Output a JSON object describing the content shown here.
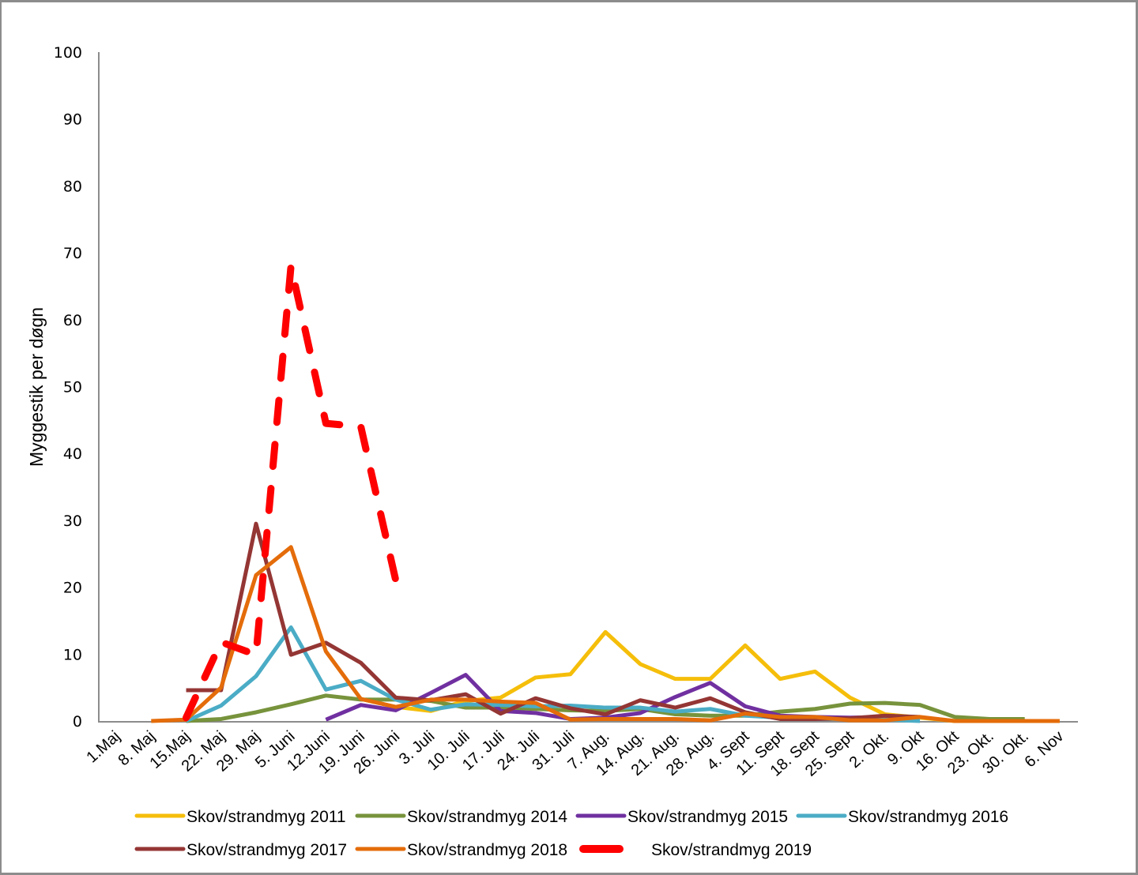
{
  "chart_data": {
    "type": "line",
    "title": "",
    "xlabel": "",
    "ylabel": "Myggestik per døgn",
    "ylim": [
      0,
      100
    ],
    "yticks": [
      "0",
      "10",
      "20",
      "30",
      "40",
      "50",
      "60",
      "70",
      "80",
      "90",
      "100"
    ],
    "grid": false,
    "legend_position": "bottom",
    "categories": [
      "1.Maj",
      "8. Maj",
      "15.Maj",
      "22. Maj",
      "29. Maj",
      "5. Juni",
      "12.Juni",
      "19. Juni",
      "26. Juni",
      "3. Juli",
      "10. Juli",
      "17. Juli",
      "24. Juli",
      "31. Juli",
      "7. Aug.",
      "14. Aug.",
      "21. Aug.",
      "28. Aug.",
      "4. Sept",
      "11. Sept",
      "18. Sept",
      "25. Sept",
      "2. Okt.",
      "9. Okt",
      "16. Okt",
      "23. Okt.",
      "30. Okt.",
      "6. Nov"
    ],
    "series": [
      {
        "name": "Skov/strandmyg 2011",
        "color": "#F5BE0A",
        "dashed": false,
        "values": [
          null,
          null,
          null,
          null,
          null,
          null,
          null,
          3.3,
          2.1,
          1.5,
          3.0,
          3.5,
          6.5,
          7.0,
          13.3,
          8.5,
          6.3,
          6.3,
          11.3,
          6.3,
          7.4,
          3.5,
          1.0,
          0.5,
          0.0,
          0.0,
          0.0,
          0.0
        ]
      },
      {
        "name": "Skov/strandmyg 2014",
        "color": "#77933C",
        "dashed": false,
        "values": [
          null,
          null,
          0.0,
          0.3,
          1.3,
          2.5,
          3.8,
          3.2,
          3.2,
          3.0,
          2.0,
          2.0,
          1.8,
          1.6,
          1.5,
          1.8,
          1.0,
          0.8,
          0.8,
          1.4,
          1.8,
          2.6,
          2.7,
          2.4,
          0.6,
          0.3,
          0.3,
          null
        ]
      },
      {
        "name": "Skov/strandmyg 2015",
        "color": "#7030A0",
        "dashed": false,
        "values": [
          null,
          null,
          null,
          null,
          null,
          null,
          0.2,
          2.4,
          1.6,
          4.2,
          6.9,
          1.5,
          1.2,
          0.3,
          0.5,
          1.2,
          3.6,
          5.7,
          2.2,
          0.8,
          0.6,
          0.5,
          0.6,
          0.5,
          null,
          null,
          null,
          null
        ]
      },
      {
        "name": "Skov/strandmyg 2016",
        "color": "#4BACC6",
        "dashed": false,
        "values": [
          null,
          null,
          0.0,
          2.3,
          6.7,
          14.0,
          4.7,
          6.0,
          3.2,
          1.7,
          2.5,
          2.4,
          2.2,
          2.3,
          2.0,
          2.0,
          1.4,
          1.8,
          0.8,
          0.5,
          0.3,
          0.3,
          0.2,
          0.0,
          null,
          null,
          null,
          null
        ]
      },
      {
        "name": "Skov/strandmyg 2017",
        "color": "#943634",
        "dashed": false,
        "values": [
          null,
          null,
          4.6,
          4.6,
          29.5,
          9.9,
          11.7,
          8.7,
          3.5,
          3.1,
          4.0,
          1.1,
          3.4,
          1.9,
          1.0,
          3.1,
          2.0,
          3.4,
          1.3,
          0.3,
          0.3,
          0.4,
          0.8,
          0.6,
          null,
          null,
          null,
          null
        ]
      },
      {
        "name": "Skov/strandmyg 2018",
        "color": "#E46C0A",
        "dashed": false,
        "values": [
          null,
          0.0,
          0.2,
          5.0,
          21.8,
          26.0,
          10.4,
          3.3,
          2.1,
          3.2,
          3.2,
          2.9,
          2.7,
          0.2,
          0.3,
          0.3,
          0.3,
          0.1,
          1.1,
          0.6,
          0.6,
          0.1,
          0.1,
          0.6,
          0.0,
          0.0,
          0.0,
          0.0
        ]
      },
      {
        "name": "Skov/strandmyg 2019",
        "color": "#FF0000",
        "dashed": true,
        "values": [
          null,
          null,
          0.5,
          11.8,
          9.9,
          68.0,
          44.5,
          44.0,
          21.0,
          null,
          null,
          null,
          null,
          null,
          null,
          null,
          null,
          null,
          null,
          null,
          null,
          null,
          null,
          null,
          null,
          null,
          null,
          null
        ]
      }
    ]
  }
}
